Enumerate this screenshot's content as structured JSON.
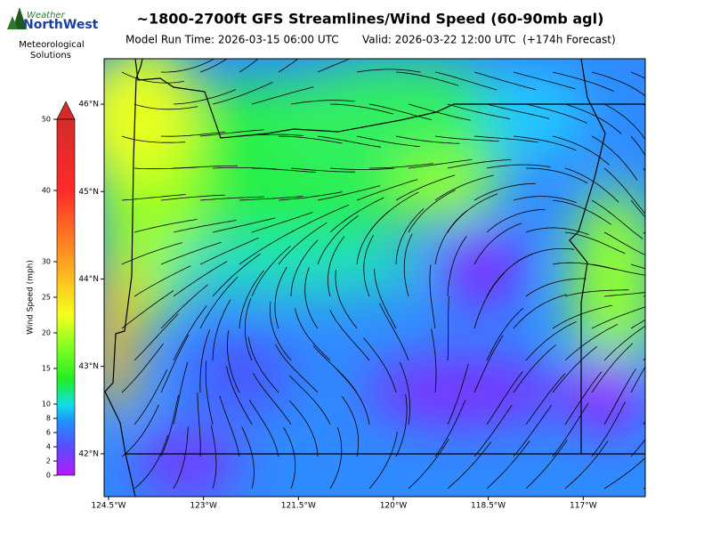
{
  "logo": {
    "top": "Weather",
    "name": "NorthWest",
    "lines": [
      "Meteorological",
      "Solutions"
    ]
  },
  "chart_data": {
    "type": "map",
    "title": "~1800-2700ft GFS Streamlines/Wind Speed (60-90mb agl)",
    "subtitle_left": "Model Run Time: 2026-03-15 06:00 UTC",
    "subtitle_right": "Valid: 2026-03-22 12:00 UTC  (+174h Forecast)",
    "xlim": [
      -124.57,
      -116.02
    ],
    "ylim": [
      41.51,
      46.52
    ],
    "xticks": [
      {
        "value": -124.5,
        "label": "124.5°W"
      },
      {
        "value": -123,
        "label": "123°W"
      },
      {
        "value": -121.5,
        "label": "121.5°W"
      },
      {
        "value": -120,
        "label": "120°W"
      },
      {
        "value": -118.5,
        "label": "118.5°W"
      },
      {
        "value": -117,
        "label": "117°W"
      }
    ],
    "yticks": [
      {
        "value": 46,
        "label": "46°N"
      },
      {
        "value": 45,
        "label": "45°N"
      },
      {
        "value": 44,
        "label": "44°N"
      },
      {
        "value": 43,
        "label": "43°N"
      },
      {
        "value": 42,
        "label": "42°N"
      }
    ],
    "colorbar": {
      "label": "Wind Speed (mph)",
      "lim": [
        0,
        50
      ],
      "ticks": [
        0,
        2,
        4,
        6,
        8,
        10,
        15,
        20,
        25,
        30,
        40,
        50
      ]
    }
  }
}
